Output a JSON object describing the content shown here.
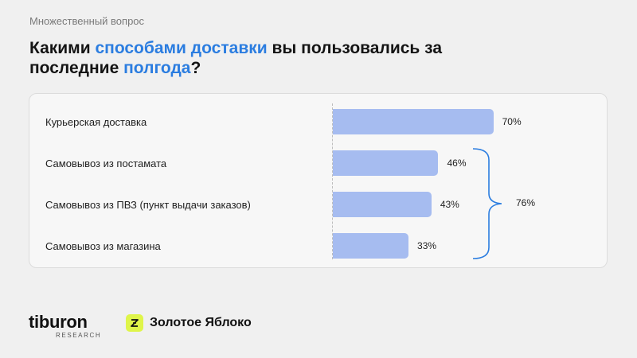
{
  "header": {
    "kicker": "Множественный вопрос",
    "title_parts": [
      {
        "text": "Какими ",
        "highlight": false
      },
      {
        "text": "способами доставки",
        "highlight": true
      },
      {
        "text": " вы пользовались за последние ",
        "highlight": false
      },
      {
        "text": "полгода",
        "highlight": true
      },
      {
        "text": "?",
        "highlight": false
      }
    ]
  },
  "colors": {
    "highlight": "#2b7de0",
    "bar": "#a6bcf0",
    "brace": "#2b7de0",
    "background": "#f0f0f0"
  },
  "chart_data": {
    "type": "bar",
    "orientation": "horizontal",
    "categories": [
      "Курьерская доставка",
      "Самовывоз из постамата",
      "Самовывоз из ПВЗ (пункт выдачи заказов)",
      "Самовывоз из магазина"
    ],
    "values": [
      70,
      46,
      43,
      33
    ],
    "value_labels": [
      "70%",
      "46%",
      "43%",
      "33%"
    ],
    "unit": "%",
    "xlim": [
      0,
      100
    ],
    "grid": false,
    "group_annotation": {
      "categories": [
        "Самовывоз из постамата",
        "Самовывоз из ПВЗ (пункт выдачи заказов)",
        "Самовывоз из магазина"
      ],
      "value": 76,
      "label": "76%"
    }
  },
  "logos": {
    "tiburon": {
      "name": "tiburon",
      "sub": "RESEARCH"
    },
    "zolotoe_yabloko": {
      "name": "Золотое Яблоко",
      "icon": "za-logo-icon"
    }
  }
}
